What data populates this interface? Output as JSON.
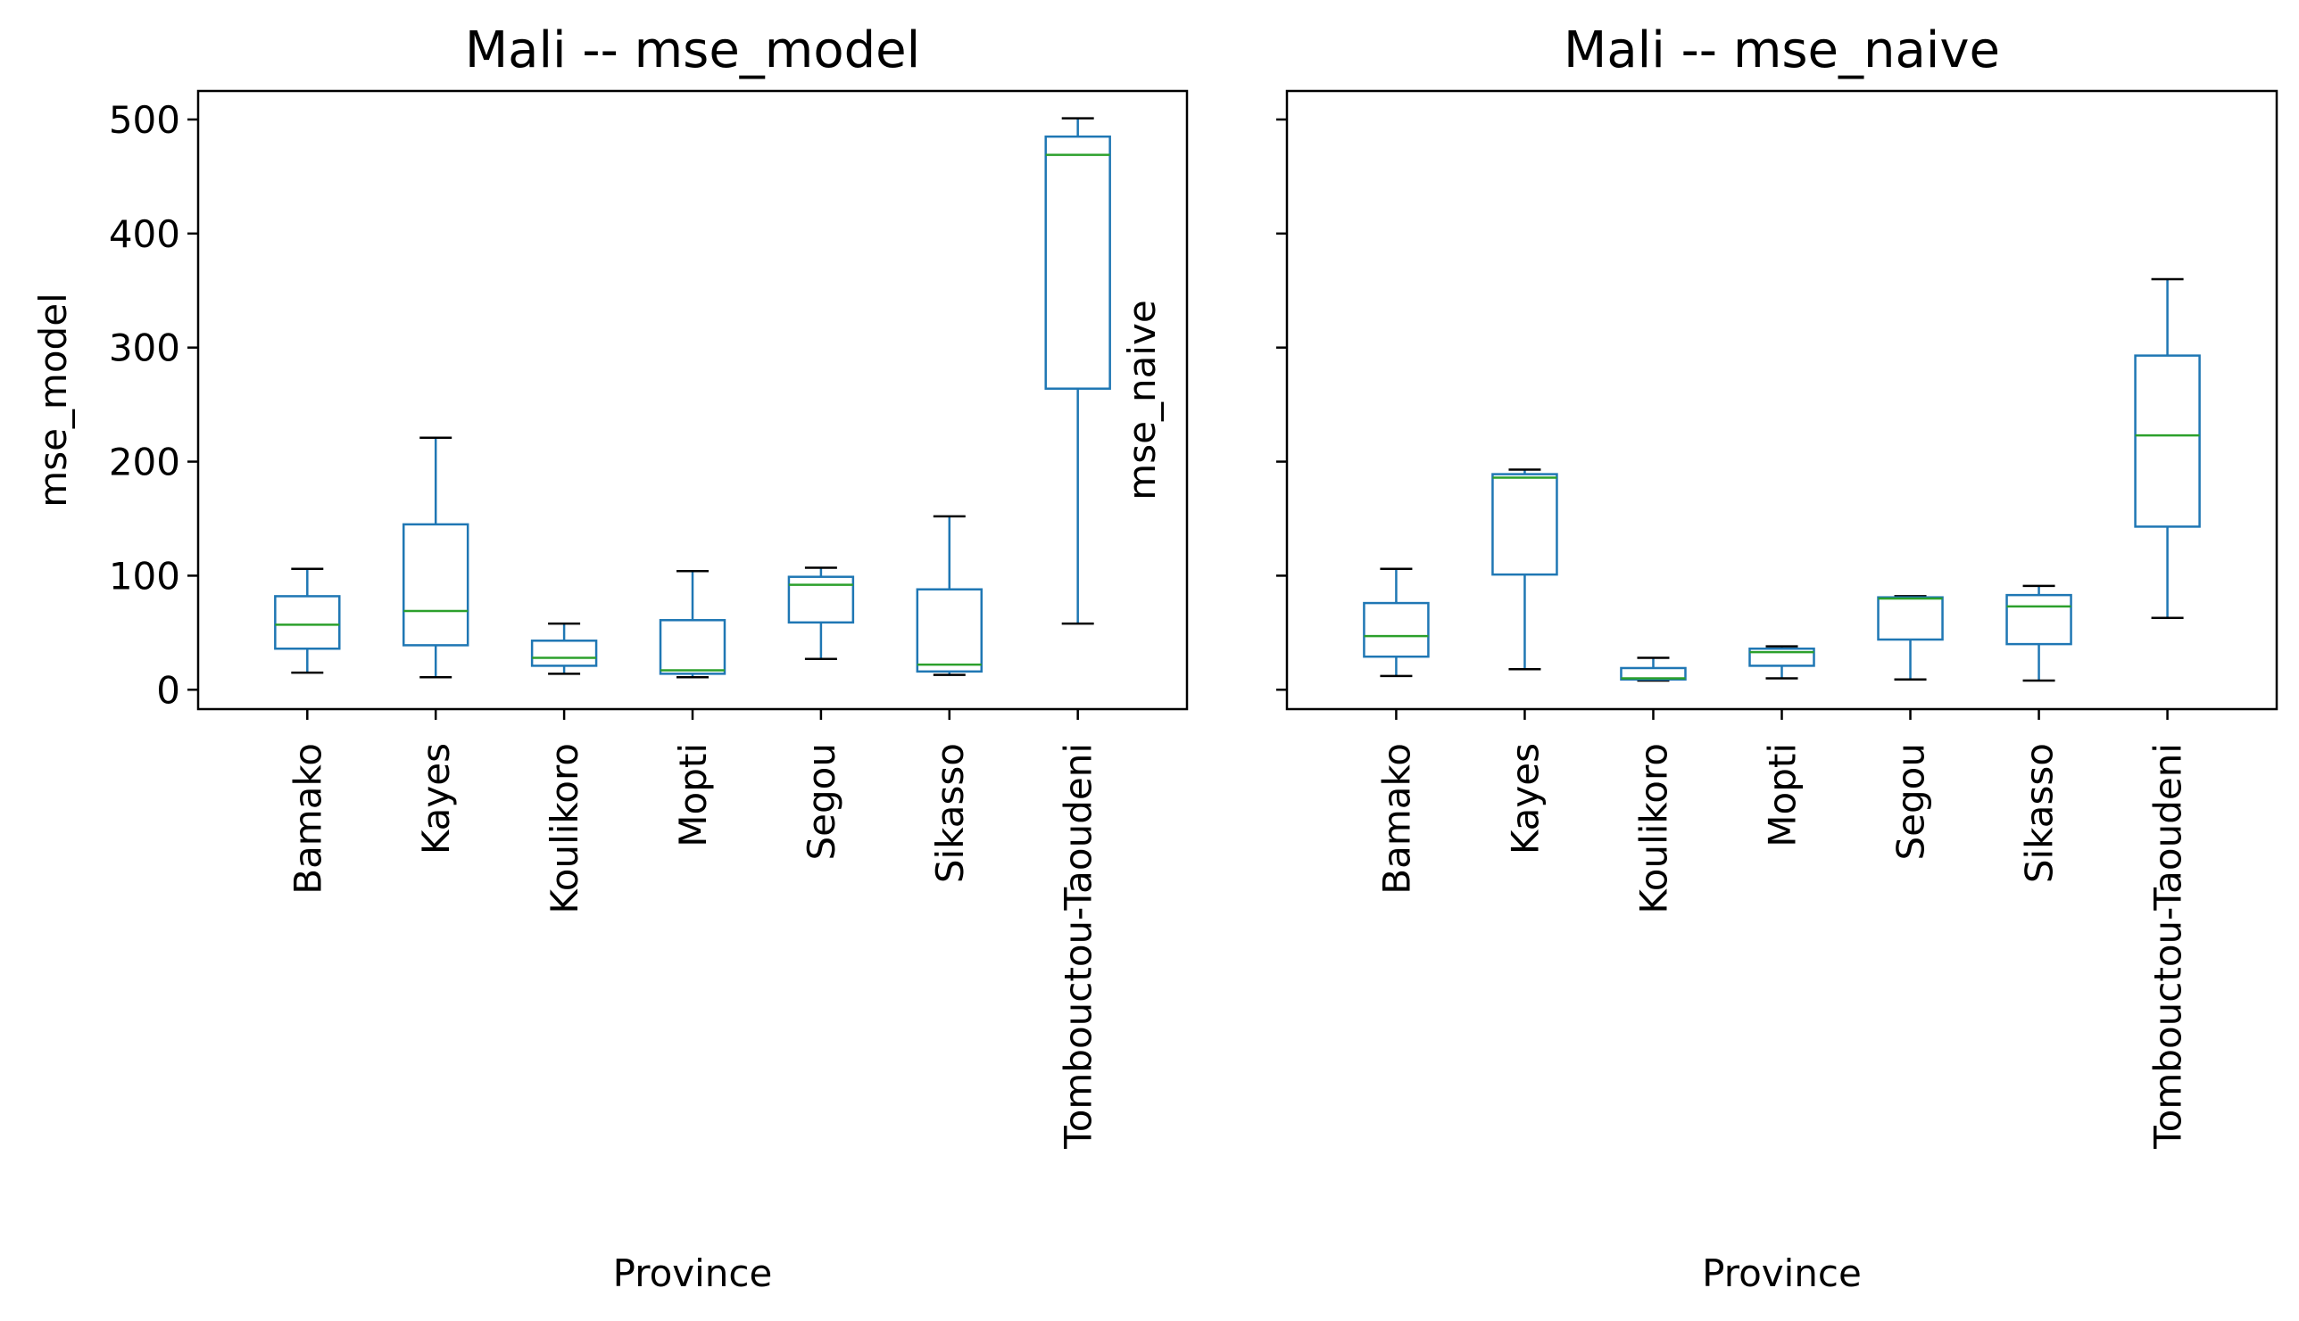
{
  "chart_data": [
    {
      "type": "box",
      "title": "Mali -- mse_model",
      "xlabel": "Province",
      "ylabel": "mse_model",
      "ylim": [
        -17,
        525
      ],
      "yticks": [
        "0",
        "100",
        "200",
        "300",
        "400",
        "500"
      ],
      "show_ytick_labels": true,
      "grid": false,
      "categories": [
        "Bamako",
        "Kayes",
        "Koulikoro",
        "Mopti",
        "Segou",
        "Sikasso",
        "Tombouctou-Taoudeni"
      ],
      "boxes": [
        {
          "whislo": 15,
          "q1": 36,
          "med": 57,
          "q3": 82,
          "whishi": 106
        },
        {
          "whislo": 11,
          "q1": 39,
          "med": 69,
          "q3": 145,
          "whishi": 221
        },
        {
          "whislo": 14,
          "q1": 21,
          "med": 28,
          "q3": 43,
          "whishi": 58
        },
        {
          "whislo": 11,
          "q1": 14,
          "med": 17,
          "q3": 61,
          "whishi": 104
        },
        {
          "whislo": 27,
          "q1": 59,
          "med": 92,
          "q3": 99,
          "whishi": 107
        },
        {
          "whislo": 13,
          "q1": 16,
          "med": 22,
          "q3": 88,
          "whishi": 152
        },
        {
          "whislo": 58,
          "q1": 264,
          "med": 469,
          "q3": 485,
          "whishi": 501
        }
      ],
      "box_color": "#1f77b4",
      "median_color": "#2ca02c",
      "whisker_cap_color": "#000000"
    },
    {
      "type": "box",
      "title": "Mali -- mse_naive",
      "xlabel": "Province",
      "ylabel": "mse_naive",
      "ylim": [
        -17,
        525
      ],
      "yticks": [
        "0",
        "100",
        "200",
        "300",
        "400",
        "500"
      ],
      "show_ytick_labels": false,
      "grid": false,
      "categories": [
        "Bamako",
        "Kayes",
        "Koulikoro",
        "Mopti",
        "Segou",
        "Sikasso",
        "Tombouctou-Taoudeni"
      ],
      "boxes": [
        {
          "whislo": 12,
          "q1": 29,
          "med": 47,
          "q3": 76,
          "whishi": 106
        },
        {
          "whislo": 18,
          "q1": 101,
          "med": 186,
          "q3": 189,
          "whishi": 193
        },
        {
          "whislo": 8,
          "q1": 9,
          "med": 10,
          "q3": 19,
          "whishi": 28
        },
        {
          "whislo": 10,
          "q1": 21,
          "med": 33,
          "q3": 36,
          "whishi": 38
        },
        {
          "whislo": 9,
          "q1": 44,
          "med": 80,
          "q3": 81,
          "whishi": 82
        },
        {
          "whislo": 8,
          "q1": 40,
          "med": 73,
          "q3": 83,
          "whishi": 91
        },
        {
          "whislo": 63,
          "q1": 143,
          "med": 223,
          "q3": 293,
          "whishi": 360
        }
      ],
      "box_color": "#1f77b4",
      "median_color": "#2ca02c",
      "whisker_cap_color": "#000000"
    }
  ]
}
